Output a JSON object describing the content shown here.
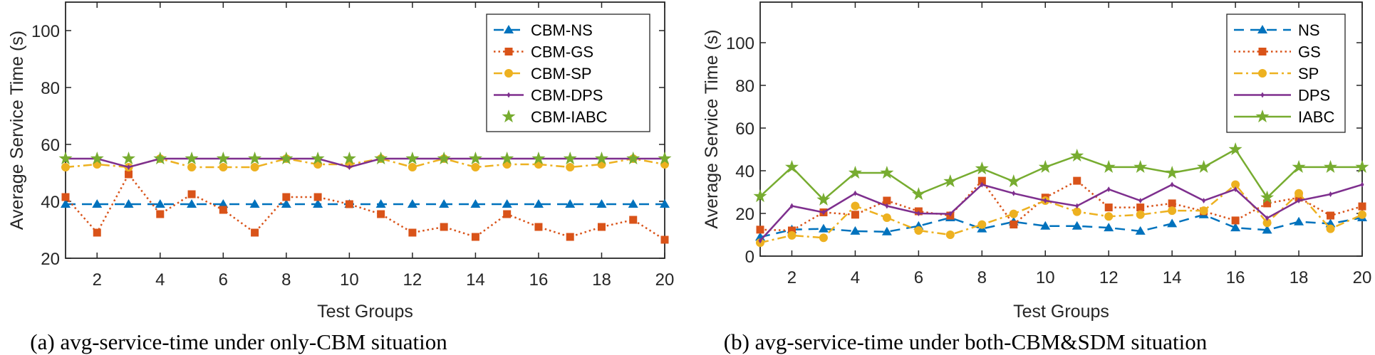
{
  "chart_data": [
    {
      "type": "line",
      "caption": "(a) avg-service-time under only-CBM situation",
      "xlabel": "Test Groups",
      "ylabel": "Average Service Time (s)",
      "xlim": [
        1,
        20
      ],
      "ylim": [
        20,
        110
      ],
      "xticks": [
        2,
        4,
        6,
        8,
        10,
        12,
        14,
        16,
        18,
        20
      ],
      "yticks": [
        20,
        40,
        60,
        80,
        100
      ],
      "legend_position": "top-right",
      "x": [
        1,
        2,
        3,
        4,
        5,
        6,
        7,
        8,
        9,
        10,
        11,
        12,
        13,
        14,
        15,
        16,
        17,
        18,
        19,
        20
      ],
      "series": [
        {
          "name": "CBM-NS",
          "color": "#0072BD",
          "style": "dashed",
          "marker": "triangle",
          "values": [
            39,
            39,
            39,
            39,
            39,
            39,
            39,
            39,
            39,
            39,
            39,
            39,
            39,
            39,
            39,
            39,
            39,
            39,
            39,
            39
          ]
        },
        {
          "name": "CBM-GS",
          "color": "#D95319",
          "style": "dotted",
          "marker": "square",
          "values": [
            41.5,
            29,
            49.5,
            35.5,
            42.5,
            37,
            29,
            41.5,
            41.5,
            39,
            35.5,
            29,
            31,
            27.5,
            35.5,
            31,
            27.5,
            31,
            33.5,
            26.5
          ]
        },
        {
          "name": "CBM-SP",
          "color": "#EDB120",
          "style": "dashdot",
          "marker": "circle",
          "values": [
            52,
            53,
            52,
            55,
            52,
            52,
            52,
            55,
            53,
            53,
            55,
            52,
            55,
            52,
            53,
            53,
            52,
            53,
            55,
            53
          ]
        },
        {
          "name": "CBM-DPS",
          "color": "#7E2F8E",
          "style": "solid",
          "marker": "point",
          "values": [
            55,
            55,
            52,
            55,
            55,
            55,
            55,
            55,
            55,
            52,
            55,
            55,
            55,
            55,
            55,
            55,
            55,
            55,
            55,
            55
          ]
        },
        {
          "name": "CBM-IABC",
          "color": "#77AC30",
          "style": "none",
          "marker": "star",
          "values": [
            55,
            55,
            55,
            55,
            55,
            55,
            55,
            55,
            55,
            55,
            55,
            55,
            55,
            55,
            55,
            55,
            55,
            55,
            55,
            55
          ]
        }
      ]
    },
    {
      "type": "line",
      "caption": "(b) avg-service-time under both-CBM&SDM situation",
      "xlabel": "Test Groups",
      "ylabel": "Average Service Time (s)",
      "xlim": [
        1,
        20
      ],
      "ylim": [
        0,
        119
      ],
      "xticks": [
        2,
        4,
        6,
        8,
        10,
        12,
        14,
        16,
        18,
        20
      ],
      "yticks": [
        0,
        20,
        40,
        60,
        80,
        100
      ],
      "legend_position": "top-right",
      "x": [
        1,
        2,
        3,
        4,
        5,
        6,
        7,
        8,
        9,
        10,
        11,
        12,
        13,
        14,
        15,
        16,
        17,
        18,
        19,
        20
      ],
      "series": [
        {
          "name": "NS",
          "color": "#0072BD",
          "style": "dashed",
          "marker": "triangle",
          "values": [
            8.9,
            12.4,
            12.8,
            11.7,
            11.4,
            14.1,
            18,
            12.8,
            16.1,
            14.1,
            14.1,
            13.3,
            11.7,
            15.2,
            19.4,
            13.3,
            12.2,
            16.1,
            15.2,
            18
          ]
        },
        {
          "name": "GS",
          "color": "#D95319",
          "style": "dotted",
          "marker": "square",
          "values": [
            12.4,
            12,
            20.5,
            19.4,
            26,
            21,
            19,
            35.3,
            14.8,
            27.4,
            35.3,
            22.8,
            22.8,
            24.7,
            21,
            16.7,
            24.7,
            27.4,
            19,
            23.3
          ]
        },
        {
          "name": "SP",
          "color": "#EDB120",
          "style": "dashdot",
          "marker": "circle",
          "values": [
            6.3,
            9.7,
            8.6,
            23.5,
            18,
            12,
            10,
            14.8,
            19.8,
            26,
            20.8,
            18.6,
            19.4,
            21.3,
            21.3,
            33.5,
            15.6,
            29.4,
            12.8,
            19.4
          ]
        },
        {
          "name": "DPS",
          "color": "#7E2F8E",
          "style": "solid",
          "marker": "point",
          "values": [
            7.2,
            23.5,
            20.5,
            29.4,
            23.5,
            20,
            19.8,
            33.5,
            29.4,
            26,
            23.5,
            31.3,
            26,
            33.5,
            26,
            31.3,
            17.8,
            26,
            29,
            33.5
          ]
        },
        {
          "name": "IABC",
          "color": "#77AC30",
          "style": "solid",
          "marker": "star",
          "values": [
            28,
            41.7,
            26.4,
            39,
            39,
            29,
            35,
            41,
            35,
            41.7,
            47,
            41.7,
            41.7,
            39,
            41.7,
            50,
            27.4,
            41.7,
            41.7,
            41.7
          ]
        }
      ]
    }
  ]
}
